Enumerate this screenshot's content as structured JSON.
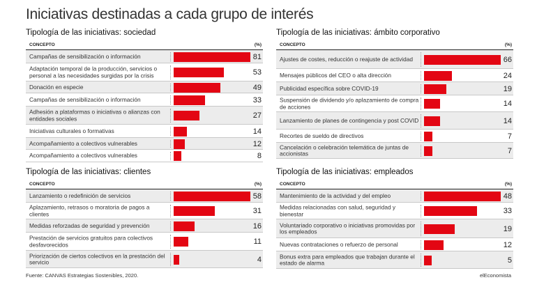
{
  "title": "Iniciativas destinadas a cada grupo de interés",
  "source": "Fuente: CANVAS Estrategias Sostenibles, 2020.",
  "brand": "elEconomista",
  "header": {
    "concept": "CONCEPTO",
    "pct": "(%)"
  },
  "colors": {
    "bar": "#e30613",
    "shade": "#ececec"
  },
  "chart_data": [
    {
      "type": "bar",
      "title": "Tipología de las iniciativas: sociedad",
      "xlim": [
        0,
        81
      ],
      "categories": [
        "Campañas de sensibilización o información",
        "Adaptación temporal de la producción, servicios o personal a las necesidades surgidas por la crisis",
        "Donación en especie",
        "Campañas de sensibilización o información",
        "Adhesión a plataformas o iniciativas o alianzas con entidades sociales",
        "Iniciativas culturales o formativas",
        "Acompañamiento a colectivos vulnerables",
        "Acompañamiento a colectivos vulnerables"
      ],
      "values": [
        81,
        53,
        49,
        33,
        27,
        14,
        12,
        8
      ]
    },
    {
      "type": "bar",
      "title": "Tipología de las iniciativas: ámbito corporativo",
      "xlim": [
        0,
        66
      ],
      "categories": [
        "Ajustes de costes, reducción o reajuste de actividad",
        "Mensajes públicos del CEO o alta dirección",
        "Publicidad específica sobre COVID-19",
        "Suspensión de dividendo y/o aplazamiento de compra de acciones",
        "Lanzamiento de planes de contingencia y post COVID",
        "Recortes de sueldo de directivos",
        "Cancelación o celebración telemática de juntas de accionistas"
      ],
      "values": [
        66,
        24,
        19,
        14,
        14,
        7,
        7
      ]
    },
    {
      "type": "bar",
      "title": "Tipología de las iniciativas: clientes",
      "xlim": [
        0,
        58
      ],
      "categories": [
        "Lanzamiento o redefinición de servicios",
        "Aplazamiento, retrasos o moratoria de pagos a clientes",
        "Medidas reforzadas de seguridad y prevención",
        "Prestación de servicios gratuitos para colectivos desfavorecidos",
        "Priorización de ciertos colectivos en la prestación del servicio"
      ],
      "values": [
        58,
        31,
        16,
        11,
        4
      ]
    },
    {
      "type": "bar",
      "title": "Tipología de las iniciativas: empleados",
      "xlim": [
        0,
        48
      ],
      "categories": [
        "Mantenimiento de la actividad y del empleo",
        "Medidas relacionadas con salud, seguridad y bienestar",
        "Voluntariado corporativo o iniciativas promovidas por los empleados",
        "Nuevas contrataciones o refuerzo de personal",
        "Bonus extra para empleados que trabajan durante el estado de alarma"
      ],
      "values": [
        48,
        33,
        19,
        12,
        5
      ]
    }
  ]
}
